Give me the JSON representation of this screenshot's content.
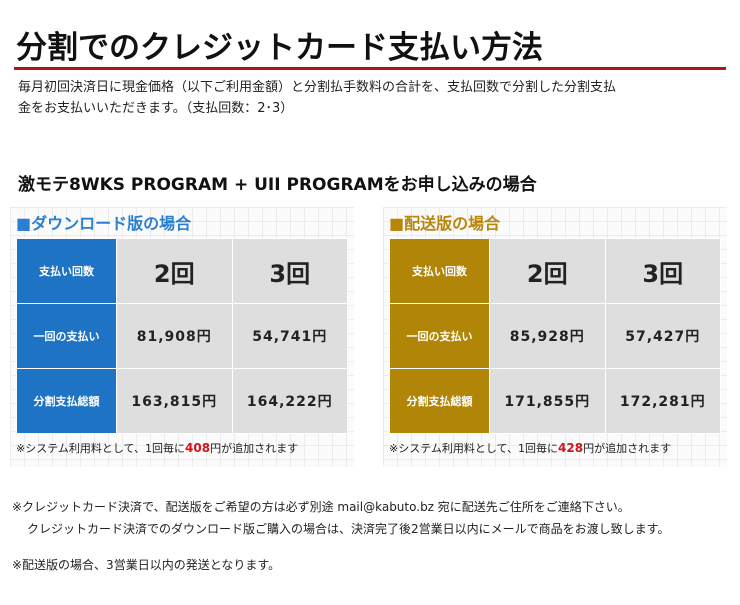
{
  "title": "分割でのクレジットカード支払い方法",
  "intro": {
    "line1": "毎月初回決済日に現金価格（以下ご利用金額）と分割払手数料の合計を、支払回数で分割した分割支払",
    "line2": "金をお支払いいただきます。（支払回数：2･3）"
  },
  "subtitle": "激モテ8WKS PROGRAM + UII PROGRAMをお申し込みの場合",
  "colors": {
    "accent_red": "#b3141c",
    "download_blue": "#1f73c4",
    "delivery_gold": "#b08508",
    "fee_red": "#d4141c"
  },
  "download": {
    "title": "■ダウンロード版の場合",
    "header_label": "支払い回数",
    "col1": "2回",
    "col2": "3回",
    "rows": [
      {
        "label": "一回の支払い",
        "v1": "81,908円",
        "v2": "54,741円"
      },
      {
        "label": "分割支払総額",
        "v1": "163,815円",
        "v2": "164,222円"
      }
    ],
    "note_prefix": "※システム利用料として、1回毎に",
    "fee": "408",
    "note_suffix": "円が追加されます"
  },
  "delivery": {
    "title": "■配送版の場合",
    "header_label": "支払い回数",
    "col1": "2回",
    "col2": "3回",
    "rows": [
      {
        "label": "一回の支払い",
        "v1": "85,928円",
        "v2": "57,427円"
      },
      {
        "label": "分割支払総額",
        "v1": "171,855円",
        "v2": "172,281円"
      }
    ],
    "note_prefix": "※システム利用料として、1回毎に",
    "fee": "428",
    "note_suffix": "円が追加されます"
  },
  "notes": {
    "line1": "※クレジットカード決済で、配送版をご希望の方は必ず別途 mail@kabuto.bz 宛に配送先ご住所をご連絡下さい。",
    "line2": "クレジットカード決済でのダウンロード版ご購入の場合は、決済完了後2営業日以内にメールで商品をお渡し致します。",
    "line3": "※配送版の場合、3営業日以内の発送となります。"
  }
}
